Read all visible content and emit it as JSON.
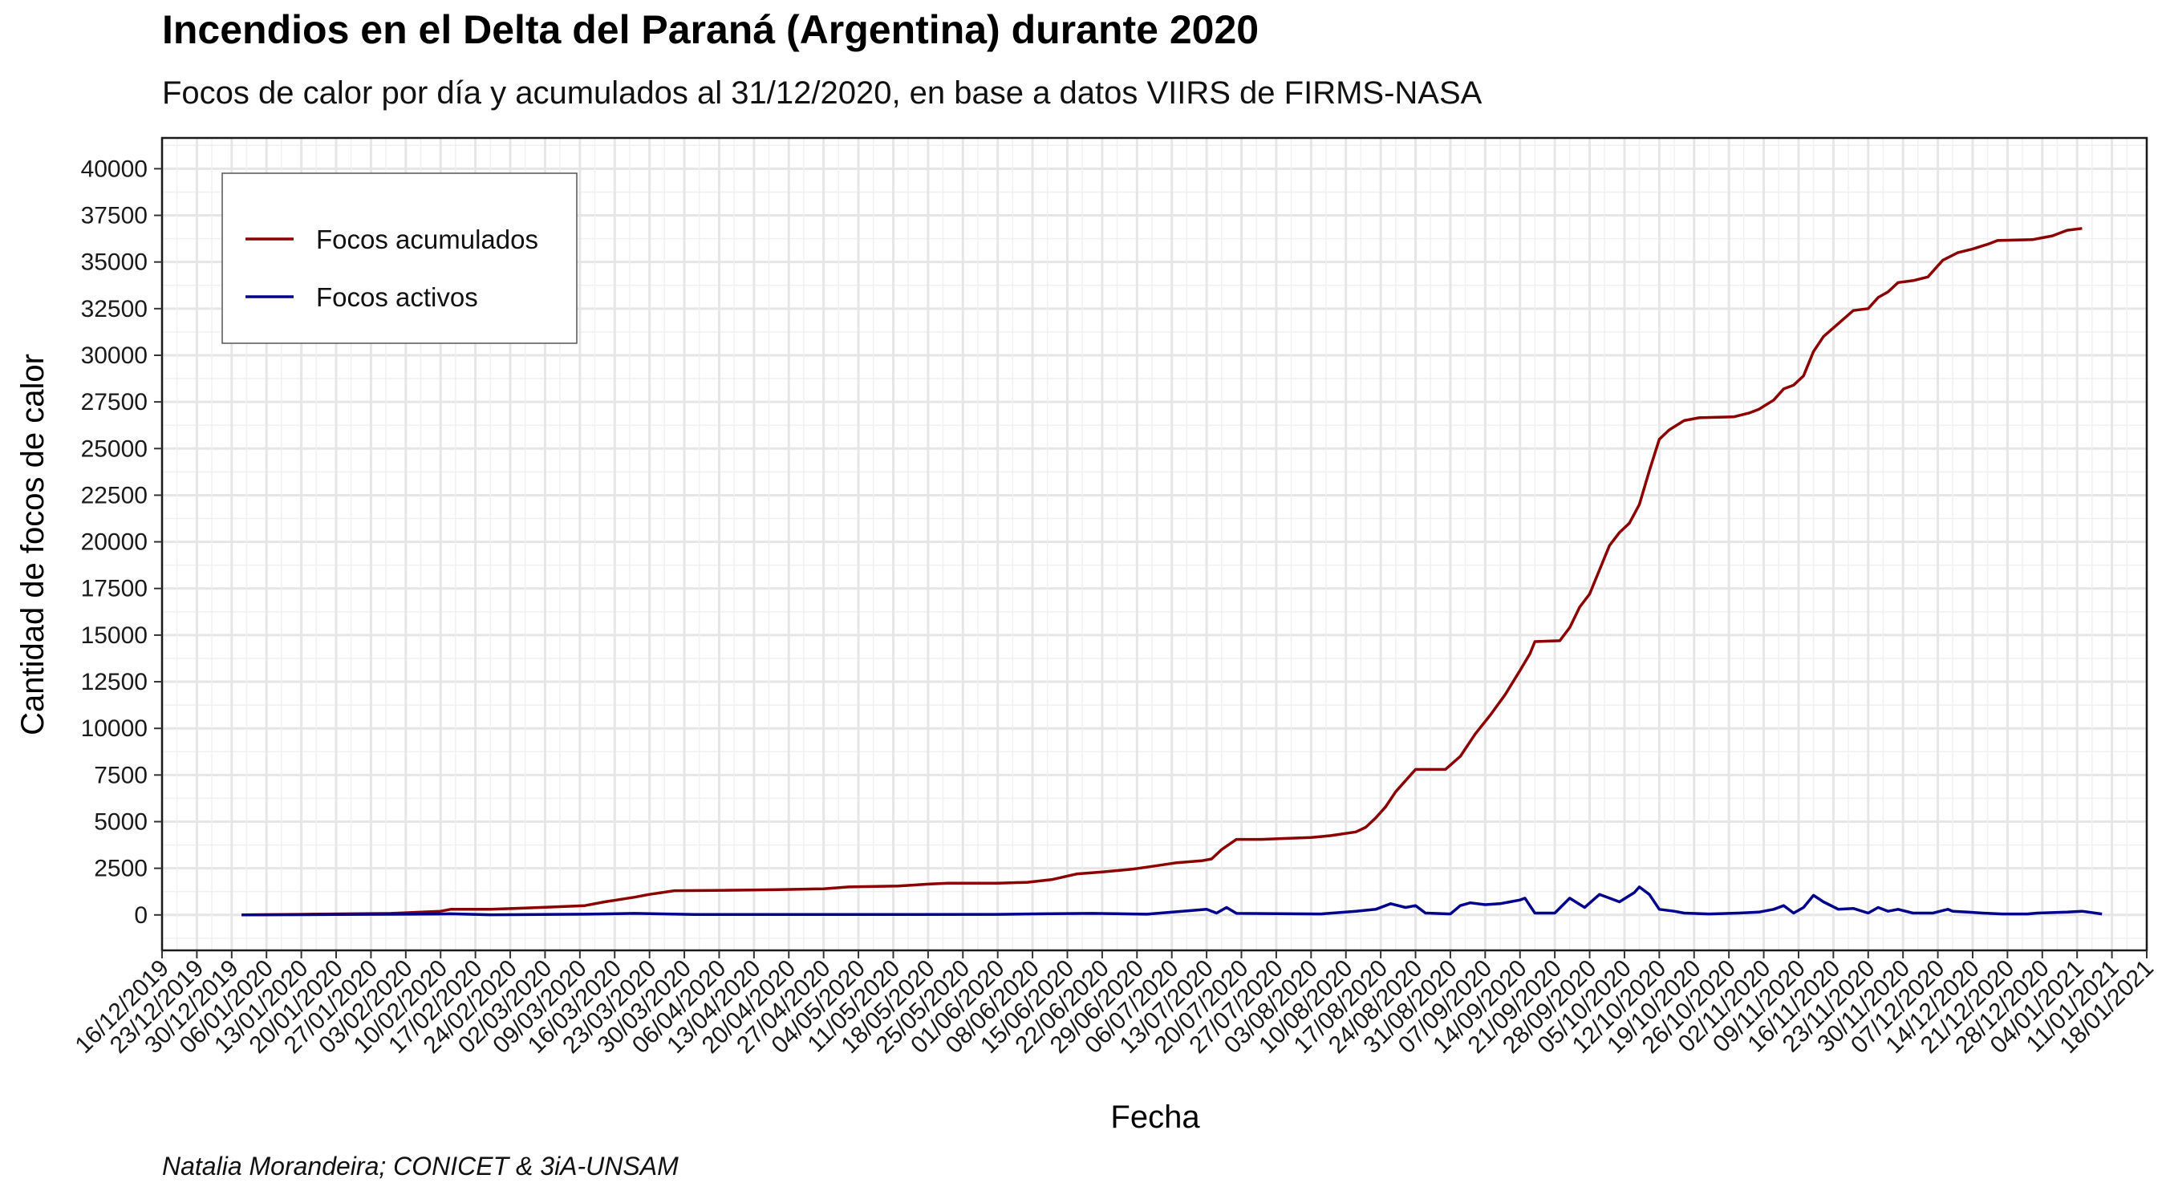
{
  "header": {
    "title": "Incendios en el Delta del Paraná (Argentina) durante 2020",
    "subtitle": "Focos de calor por día y acumulados al 31/12/2020, en base a datos VIIRS de FIRMS-NASA"
  },
  "caption": "Natalia Morandeira; CONICET & 3iA-UNSAM",
  "chart_data": {
    "type": "line",
    "title": "Incendios en el Delta del Paraná (Argentina) durante 2020",
    "subtitle": "Focos de calor por día y acumulados al 31/12/2020, en base a datos VIIRS de FIRMS-NASA",
    "xlabel": "Fecha",
    "ylabel": "Cantidad de focos de calor",
    "xlim": [
      "2019-12-16",
      "2021-01-18"
    ],
    "ylim": [
      -1900,
      41650
    ],
    "grid": true,
    "legend_position": "top-left",
    "x_tick_labels": [
      "16/12/2019",
      "23/12/2019",
      "30/12/2019",
      "06/01/2020",
      "13/01/2020",
      "20/01/2020",
      "27/01/2020",
      "03/02/2020",
      "10/02/2020",
      "17/02/2020",
      "24/02/2020",
      "02/03/2020",
      "09/03/2020",
      "16/03/2020",
      "23/03/2020",
      "30/03/2020",
      "06/04/2020",
      "13/04/2020",
      "20/04/2020",
      "27/04/2020",
      "04/05/2020",
      "11/05/2020",
      "18/05/2020",
      "25/05/2020",
      "01/06/2020",
      "08/06/2020",
      "15/06/2020",
      "22/06/2020",
      "29/06/2020",
      "06/07/2020",
      "13/07/2020",
      "20/07/2020",
      "27/07/2020",
      "03/08/2020",
      "10/08/2020",
      "17/08/2020",
      "24/08/2020",
      "31/08/2020",
      "07/09/2020",
      "14/09/2020",
      "21/09/2020",
      "28/09/2020",
      "05/10/2020",
      "12/10/2020",
      "19/10/2020",
      "26/10/2020",
      "02/11/2020",
      "09/11/2020",
      "16/11/2020",
      "23/11/2020",
      "30/11/2020",
      "07/12/2020",
      "14/12/2020",
      "21/12/2020",
      "28/12/2020",
      "04/01/2021",
      "11/01/2021",
      "18/01/2021"
    ],
    "y_tick_labels": [
      "0",
      "2500",
      "5000",
      "7500",
      "10000",
      "12500",
      "15000",
      "17500",
      "20000",
      "22500",
      "25000",
      "27500",
      "30000",
      "32500",
      "35000",
      "37500",
      "40000"
    ],
    "series": [
      {
        "name": "Focos acumulados",
        "color": "#8b0000",
        "points": [
          [
            "2020-01-01",
            0
          ],
          [
            "2020-01-15",
            40
          ],
          [
            "2020-01-31",
            80
          ],
          [
            "2020-02-10",
            200
          ],
          [
            "2020-02-12",
            300
          ],
          [
            "2020-02-20",
            300
          ],
          [
            "2020-02-28",
            380
          ],
          [
            "2020-03-10",
            500
          ],
          [
            "2020-03-14",
            700
          ],
          [
            "2020-03-20",
            950
          ],
          [
            "2020-03-23",
            1100
          ],
          [
            "2020-03-28",
            1300
          ],
          [
            "2020-04-07",
            1320
          ],
          [
            "2020-04-17",
            1350
          ],
          [
            "2020-04-27",
            1400
          ],
          [
            "2020-05-02",
            1500
          ],
          [
            "2020-05-12",
            1550
          ],
          [
            "2020-05-18",
            1650
          ],
          [
            "2020-05-22",
            1700
          ],
          [
            "2020-06-01",
            1700
          ],
          [
            "2020-06-07",
            1750
          ],
          [
            "2020-06-12",
            1900
          ],
          [
            "2020-06-17",
            2200
          ],
          [
            "2020-06-22",
            2300
          ],
          [
            "2020-06-28",
            2450
          ],
          [
            "2020-07-02",
            2600
          ],
          [
            "2020-07-07",
            2800
          ],
          [
            "2020-07-12",
            2900
          ],
          [
            "2020-07-14",
            3000
          ],
          [
            "2020-07-16",
            3500
          ],
          [
            "2020-07-19",
            4050
          ],
          [
            "2020-07-24",
            4050
          ],
          [
            "2020-07-29",
            4100
          ],
          [
            "2020-08-03",
            4150
          ],
          [
            "2020-08-07",
            4250
          ],
          [
            "2020-08-12",
            4450
          ],
          [
            "2020-08-14",
            4700
          ],
          [
            "2020-08-16",
            5200
          ],
          [
            "2020-08-18",
            5800
          ],
          [
            "2020-08-20",
            6600
          ],
          [
            "2020-08-22",
            7200
          ],
          [
            "2020-08-24",
            7800
          ],
          [
            "2020-08-30",
            7800
          ],
          [
            "2020-09-02",
            8500
          ],
          [
            "2020-09-05",
            9700
          ],
          [
            "2020-09-08",
            10700
          ],
          [
            "2020-09-11",
            11800
          ],
          [
            "2020-09-14",
            13100
          ],
          [
            "2020-09-16",
            14000
          ],
          [
            "2020-09-17",
            14650
          ],
          [
            "2020-09-22",
            14700
          ],
          [
            "2020-09-24",
            15400
          ],
          [
            "2020-09-26",
            16500
          ],
          [
            "2020-09-28",
            17200
          ],
          [
            "2020-09-30",
            18500
          ],
          [
            "2020-10-02",
            19800
          ],
          [
            "2020-10-04",
            20500
          ],
          [
            "2020-10-06",
            21000
          ],
          [
            "2020-10-08",
            22000
          ],
          [
            "2020-10-10",
            23800
          ],
          [
            "2020-10-12",
            25500
          ],
          [
            "2020-10-14",
            26000
          ],
          [
            "2020-10-17",
            26500
          ],
          [
            "2020-10-20",
            26650
          ],
          [
            "2020-10-27",
            26700
          ],
          [
            "2020-10-30",
            26900
          ],
          [
            "2020-11-01",
            27100
          ],
          [
            "2020-11-04",
            27600
          ],
          [
            "2020-11-06",
            28200
          ],
          [
            "2020-11-08",
            28400
          ],
          [
            "2020-11-10",
            28900
          ],
          [
            "2020-11-12",
            30200
          ],
          [
            "2020-11-14",
            31000
          ],
          [
            "2020-11-17",
            31700
          ],
          [
            "2020-11-20",
            32400
          ],
          [
            "2020-11-23",
            32500
          ],
          [
            "2020-11-25",
            33100
          ],
          [
            "2020-11-27",
            33400
          ],
          [
            "2020-11-29",
            33900
          ],
          [
            "2020-12-02",
            34000
          ],
          [
            "2020-12-05",
            34200
          ],
          [
            "2020-12-08",
            35100
          ],
          [
            "2020-12-11",
            35500
          ],
          [
            "2020-12-14",
            35700
          ],
          [
            "2020-12-17",
            35950
          ],
          [
            "2020-12-19",
            36150
          ],
          [
            "2020-12-26",
            36200
          ],
          [
            "2020-12-30",
            36400
          ],
          [
            "2021-01-02",
            36700
          ],
          [
            "2021-01-05",
            36800
          ]
        ]
      },
      {
        "name": "Focos activos",
        "color": "#00008b",
        "points": [
          [
            "2020-01-01",
            0
          ],
          [
            "2020-01-20",
            20
          ],
          [
            "2020-02-10",
            50
          ],
          [
            "2020-02-12",
            60
          ],
          [
            "2020-02-20",
            10
          ],
          [
            "2020-03-10",
            40
          ],
          [
            "2020-03-20",
            80
          ],
          [
            "2020-04-01",
            20
          ],
          [
            "2020-05-01",
            20
          ],
          [
            "2020-06-01",
            30
          ],
          [
            "2020-06-10",
            60
          ],
          [
            "2020-06-20",
            80
          ],
          [
            "2020-07-01",
            40
          ],
          [
            "2020-07-13",
            300
          ],
          [
            "2020-07-15",
            100
          ],
          [
            "2020-07-17",
            400
          ],
          [
            "2020-07-19",
            80
          ],
          [
            "2020-08-05",
            50
          ],
          [
            "2020-08-12",
            200
          ],
          [
            "2020-08-16",
            300
          ],
          [
            "2020-08-19",
            600
          ],
          [
            "2020-08-22",
            400
          ],
          [
            "2020-08-24",
            500
          ],
          [
            "2020-08-26",
            100
          ],
          [
            "2020-08-31",
            50
          ],
          [
            "2020-09-02",
            500
          ],
          [
            "2020-09-04",
            650
          ],
          [
            "2020-09-07",
            550
          ],
          [
            "2020-09-10",
            600
          ],
          [
            "2020-09-12",
            700
          ],
          [
            "2020-09-14",
            800
          ],
          [
            "2020-09-15",
            900
          ],
          [
            "2020-09-17",
            100
          ],
          [
            "2020-09-21",
            100
          ],
          [
            "2020-09-24",
            900
          ],
          [
            "2020-09-27",
            400
          ],
          [
            "2020-09-30",
            1100
          ],
          [
            "2020-10-02",
            900
          ],
          [
            "2020-10-04",
            700
          ],
          [
            "2020-10-07",
            1200
          ],
          [
            "2020-10-08",
            1500
          ],
          [
            "2020-10-10",
            1100
          ],
          [
            "2020-10-12",
            300
          ],
          [
            "2020-10-15",
            200
          ],
          [
            "2020-10-17",
            100
          ],
          [
            "2020-10-22",
            50
          ],
          [
            "2020-10-28",
            100
          ],
          [
            "2020-11-01",
            150
          ],
          [
            "2020-11-04",
            300
          ],
          [
            "2020-11-06",
            500
          ],
          [
            "2020-11-08",
            100
          ],
          [
            "2020-11-10",
            400
          ],
          [
            "2020-11-12",
            1050
          ],
          [
            "2020-11-14",
            700
          ],
          [
            "2020-11-17",
            300
          ],
          [
            "2020-11-20",
            350
          ],
          [
            "2020-11-23",
            100
          ],
          [
            "2020-11-25",
            400
          ],
          [
            "2020-11-27",
            200
          ],
          [
            "2020-11-29",
            300
          ],
          [
            "2020-12-02",
            100
          ],
          [
            "2020-12-06",
            100
          ],
          [
            "2020-12-09",
            300
          ],
          [
            "2020-12-10",
            200
          ],
          [
            "2020-12-13",
            150
          ],
          [
            "2020-12-16",
            100
          ],
          [
            "2020-12-20",
            50
          ],
          [
            "2020-12-25",
            50
          ],
          [
            "2020-12-27",
            100
          ],
          [
            "2021-01-02",
            150
          ],
          [
            "2021-01-05",
            200
          ],
          [
            "2021-01-09",
            50
          ]
        ]
      }
    ]
  }
}
